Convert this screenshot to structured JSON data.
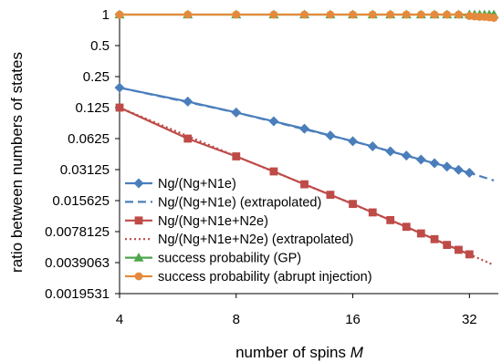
{
  "chart_data": {
    "type": "line",
    "title": "",
    "xlabel": "number of spins M",
    "ylabel": "ratio between numbers of states",
    "x_scale": "log2",
    "y_scale": "log2",
    "xlim": [
      4,
      38
    ],
    "ylim": [
      0.0019531,
      1
    ],
    "x_ticks": [
      4,
      8,
      16,
      32
    ],
    "x_tick_labels": [
      "4",
      "8",
      "16",
      "32"
    ],
    "y_ticks": [
      1,
      0.5,
      0.25,
      0.125,
      0.0625,
      0.03125,
      0.015625,
      0.0078125,
      0.0039063,
      0.0019531
    ],
    "y_tick_labels": [
      "1",
      "0.5",
      "0.25",
      "0.125",
      "0.0625",
      "0.03125",
      "0.015625",
      "0.0078125",
      "0.0039063",
      "0.0019531"
    ],
    "grid": false,
    "legend_position": "bottom-left",
    "series": [
      {
        "name": "Ng/(Ng+N1e)",
        "color": "#4a7ebb",
        "marker": "diamond",
        "line": "solid",
        "x": [
          4,
          6,
          8,
          10,
          12,
          14,
          16,
          18,
          20,
          22,
          24,
          26,
          28,
          30,
          32
        ],
        "y": [
          0.195,
          0.143,
          0.112,
          0.092,
          0.078,
          0.067,
          0.059,
          0.0525,
          0.047,
          0.0427,
          0.0391,
          0.036,
          0.0334,
          0.0311,
          0.0291
        ]
      },
      {
        "name": "Ng/(Ng+N1e) (extrapolated)",
        "color": "#4a7ebb",
        "marker": "none",
        "line": "dashed",
        "x": [
          4,
          8,
          16,
          32,
          37
        ],
        "y": [
          0.195,
          0.112,
          0.059,
          0.0291,
          0.0245
        ]
      },
      {
        "name": "Ng/(Ng+N1e+N2e)",
        "color": "#be4b48",
        "marker": "square",
        "line": "solid",
        "x": [
          4,
          6,
          8,
          10,
          12,
          14,
          16,
          18,
          20,
          22,
          24,
          26,
          28,
          30,
          32
        ],
        "y": [
          0.125,
          0.0625,
          0.042,
          0.03,
          0.0225,
          0.0178,
          0.0145,
          0.012,
          0.0101,
          0.0087,
          0.0075,
          0.0066,
          0.0058,
          0.0052,
          0.0047
        ]
      },
      {
        "name": "Ng/(Ng+N1e+N2e) (extrapolated)",
        "color": "#be4b48",
        "marker": "none",
        "line": "dotted",
        "x": [
          4,
          8,
          16,
          32,
          37
        ],
        "y": [
          0.125,
          0.042,
          0.0145,
          0.0047,
          0.0037
        ]
      },
      {
        "name": "success probability (GP)",
        "color": "#4ea64e",
        "marker": "triangle",
        "line": "solid",
        "x": [
          4,
          6,
          8,
          10,
          12,
          14,
          16,
          18,
          20,
          22,
          24,
          26,
          28,
          30,
          32,
          33,
          34,
          35,
          36,
          37
        ],
        "y": [
          1,
          1,
          1,
          1,
          1,
          1,
          1,
          1,
          1,
          1,
          1,
          1,
          1,
          1,
          1,
          1,
          1,
          1,
          1,
          1
        ]
      },
      {
        "name": "success probability (abrupt injection)",
        "color": "#e58a3c",
        "marker": "circle",
        "line": "solid",
        "x": [
          4,
          6,
          8,
          10,
          12,
          14,
          16,
          18,
          20,
          22,
          24,
          26,
          28,
          30,
          32,
          33,
          34,
          35,
          36,
          37
        ],
        "y": [
          1,
          1,
          1,
          1,
          1,
          1,
          1,
          1,
          1,
          1,
          1,
          1,
          1,
          1,
          0.97,
          0.96,
          0.95,
          0.95,
          0.94,
          0.93
        ]
      }
    ]
  }
}
